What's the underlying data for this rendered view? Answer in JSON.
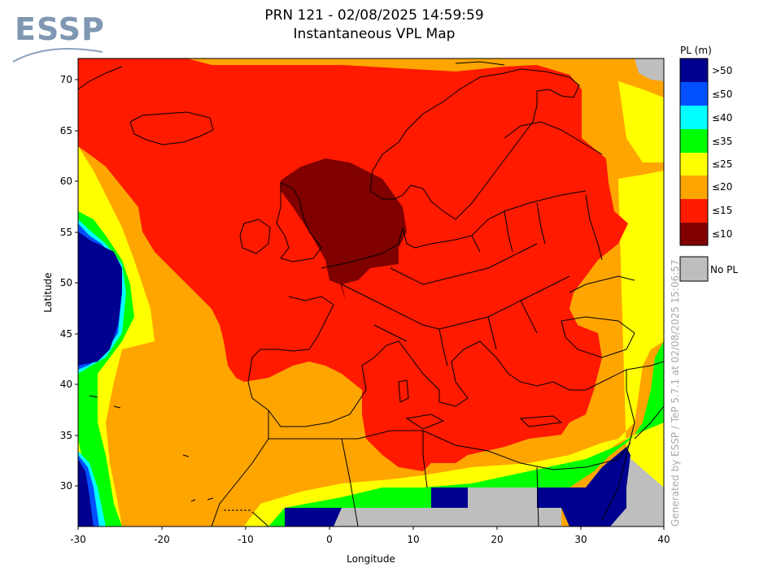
{
  "header": {
    "logo_text": "ESSP",
    "title_line1": "PRN 121 - 02/08/2025 14:59:59",
    "title_line2": "Instantaneous VPL Map"
  },
  "axes": {
    "xlabel": "Longitude",
    "ylabel": "Latitude",
    "xticks": [
      "-30",
      "-20",
      "-10",
      "0",
      "10",
      "20",
      "30",
      "40"
    ],
    "yticks": [
      "70",
      "65",
      "60",
      "55",
      "50",
      "45",
      "40",
      "35",
      "30"
    ]
  },
  "legend": {
    "title": "PL (m)",
    "items": [
      {
        "label": ">50",
        "color": "#000090"
      },
      {
        "label": "≤50",
        "color": "#0050ff"
      },
      {
        "label": "≤40",
        "color": "#00ffff"
      },
      {
        "label": "≤35",
        "color": "#00ff00"
      },
      {
        "label": "≤25",
        "color": "#ffff00"
      },
      {
        "label": "≤20",
        "color": "#ffa500"
      },
      {
        "label": "≤15",
        "color": "#ff1a00"
      },
      {
        "label": "≤10",
        "color": "#800000"
      }
    ],
    "no_pl": {
      "label": "No PL",
      "color": "#bebebe"
    }
  },
  "credit": "Generated by ESSP / TeP 5.7.1 at 02/08/2025 15:06:57"
}
